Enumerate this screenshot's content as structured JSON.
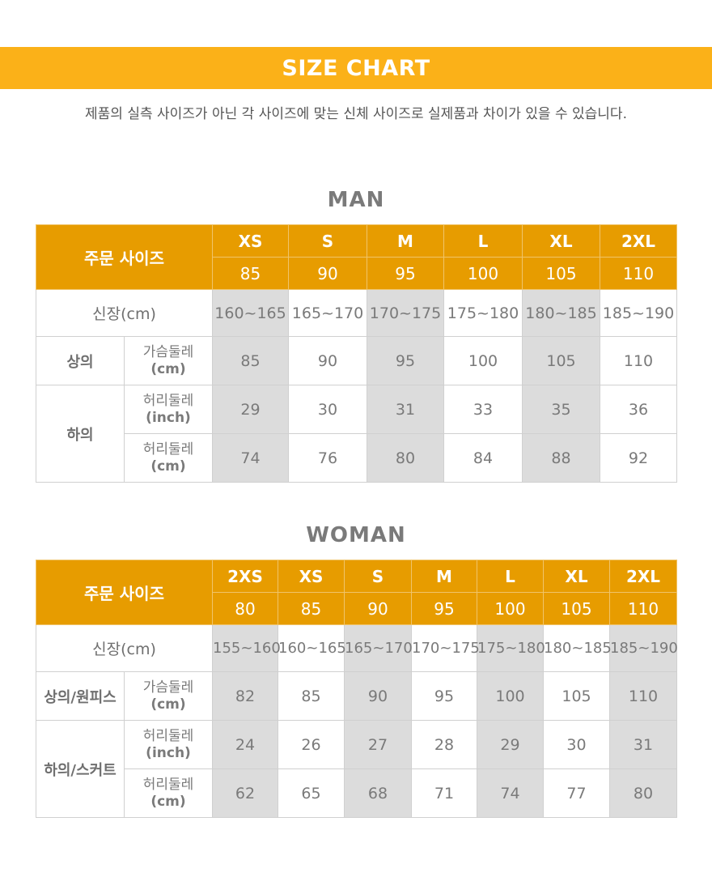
{
  "header": {
    "title": "SIZE CHART"
  },
  "notice": "제품의 실측 사이즈가 아닌 각 사이즈에 맞는 신체 사이즈로 실제품과 차이가 있을 수 있습니다.",
  "colors": {
    "accent_banner": "#fbb118",
    "accent_header": "#e79c00",
    "shade": "#dcdcdc"
  },
  "man": {
    "title": "MAN",
    "order_size_label": "주문 사이즈",
    "sizes": [
      "XS",
      "S",
      "M",
      "L",
      "XL",
      "2XL"
    ],
    "size_numbers": [
      "85",
      "90",
      "95",
      "100",
      "105",
      "110"
    ],
    "height_label": "신장(cm)",
    "heights": [
      "160~165",
      "165~170",
      "170~175",
      "175~180",
      "180~185",
      "185~190"
    ],
    "top_label": "상의",
    "chest_label": "가슴둘레",
    "chest_unit": "(cm)",
    "chest": [
      "85",
      "90",
      "95",
      "100",
      "105",
      "110"
    ],
    "bottom_label": "하의",
    "waist_label": "허리둘레",
    "waist_inch_unit": "(inch)",
    "waist_inch": [
      "29",
      "30",
      "31",
      "33",
      "35",
      "36"
    ],
    "waist_cm_unit": "(cm)",
    "waist_cm": [
      "74",
      "76",
      "80",
      "84",
      "88",
      "92"
    ]
  },
  "woman": {
    "title": "WOMAN",
    "order_size_label": "주문 사이즈",
    "sizes": [
      "2XS",
      "XS",
      "S",
      "M",
      "L",
      "XL",
      "2XL"
    ],
    "size_numbers": [
      "80",
      "85",
      "90",
      "95",
      "100",
      "105",
      "110"
    ],
    "height_label": "신장(cm)",
    "heights": [
      "155~160",
      "160~165",
      "165~170",
      "170~175",
      "175~180",
      "180~185",
      "185~190"
    ],
    "top_label": "상의/원피스",
    "chest_label": "가슴둘레",
    "chest_unit": "(cm)",
    "chest": [
      "82",
      "85",
      "90",
      "95",
      "100",
      "105",
      "110"
    ],
    "bottom_label": "하의/스커트",
    "waist_label": "허리둘레",
    "waist_inch_unit": "(inch)",
    "waist_inch": [
      "24",
      "26",
      "27",
      "28",
      "29",
      "30",
      "31"
    ],
    "waist_cm_unit": "(cm)",
    "waist_cm": [
      "62",
      "65",
      "68",
      "71",
      "74",
      "77",
      "80"
    ]
  }
}
